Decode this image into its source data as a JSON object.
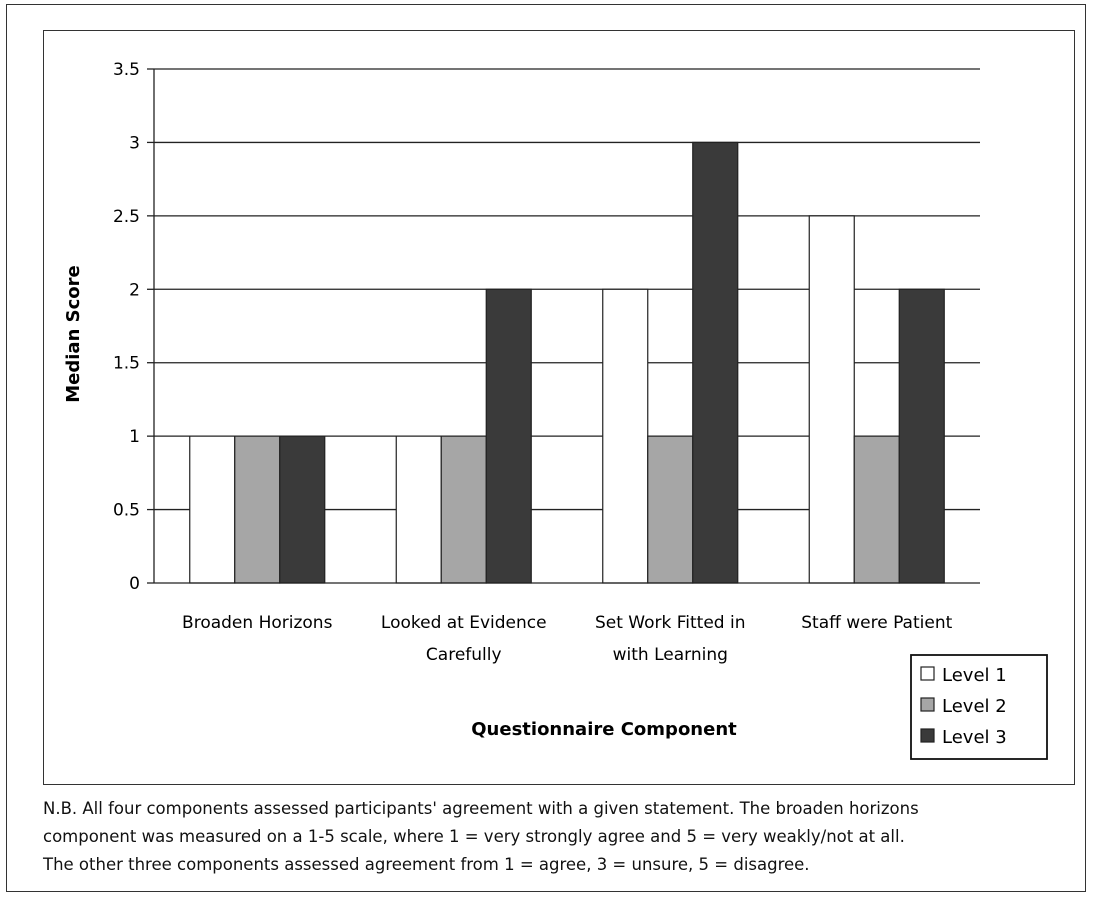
{
  "chart_data": {
    "type": "bar",
    "title": "",
    "xlabel": "Questionnaire Component",
    "ylabel": "Median Score",
    "categories": [
      [
        "Broaden Horizons"
      ],
      [
        "Looked at Evidence",
        "Carefully"
      ],
      [
        "Set Work Fitted in",
        "with Learning"
      ],
      [
        "Staff were Patient"
      ]
    ],
    "series": [
      {
        "name": "Level 1",
        "color": "#ffffff",
        "values": [
          1,
          1,
          2,
          2.5
        ]
      },
      {
        "name": "Level 2",
        "color": "#a6a6a6",
        "values": [
          1,
          1,
          1,
          1
        ]
      },
      {
        "name": "Level 3",
        "color": "#3a3a3a",
        "values": [
          1,
          2,
          3,
          2
        ]
      }
    ],
    "ylim": [
      0,
      3.5
    ],
    "yticks": [
      "0",
      "0.5",
      "1",
      "1.5",
      "2",
      "2.5",
      "3",
      "3.5"
    ],
    "grid": true,
    "legend": "bottom-right"
  },
  "footnote": {
    "lines": [
      "N.B.  All four components assessed participants' agreement with a given statement. The broaden horizons",
      "component was measured on a 1-5 scale, where 1 = very strongly agree and 5 = very weakly/not at all.",
      "The other three components assessed agreement from 1 = agree, 3 = unsure, 5 = disagree."
    ]
  }
}
